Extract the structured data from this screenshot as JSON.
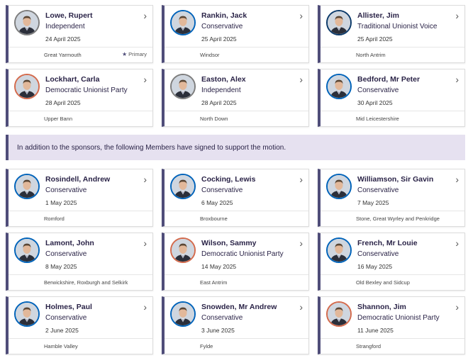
{
  "sponsors": [
    {
      "name": "Lowe, Rupert",
      "party": "Independent",
      "date": "24 April 2025",
      "constituency": "Great Yarmouth",
      "badge": "Primary"
    },
    {
      "name": "Rankin, Jack",
      "party": "Conservative",
      "date": "25 April 2025",
      "constituency": "Windsor"
    },
    {
      "name": "Allister, Jim",
      "party": "Traditional Unionist Voice",
      "date": "25 April 2025",
      "constituency": "North Antrim"
    },
    {
      "name": "Lockhart, Carla",
      "party": "Democratic Unionist Party",
      "date": "28 April 2025",
      "constituency": "Upper Bann"
    },
    {
      "name": "Easton, Alex",
      "party": "Independent",
      "date": "28 April 2025",
      "constituency": "North Down"
    },
    {
      "name": "Bedford, Mr Peter",
      "party": "Conservative",
      "date": "30 April 2025",
      "constituency": "Mid Leicestershire"
    }
  ],
  "banner_text": "In addition to the sponsors, the following Members have signed to support the motion.",
  "supporters": [
    {
      "name": "Rosindell, Andrew",
      "party": "Conservative",
      "date": "1 May 2025",
      "constituency": "Romford"
    },
    {
      "name": "Cocking, Lewis",
      "party": "Conservative",
      "date": "6 May 2025",
      "constituency": "Broxbourne"
    },
    {
      "name": "Williamson, Sir Gavin",
      "party": "Conservative",
      "date": "7 May 2025",
      "constituency": "Stone, Great Wyrley and Penkridge"
    },
    {
      "name": "Lamont, John",
      "party": "Conservative",
      "date": "8 May 2025",
      "constituency": "Berwickshire, Roxburgh and Selkirk"
    },
    {
      "name": "Wilson, Sammy",
      "party": "Democratic Unionist Party",
      "date": "14 May 2025",
      "constituency": "East Antrim"
    },
    {
      "name": "French, Mr Louie",
      "party": "Conservative",
      "date": "16 May 2025",
      "constituency": "Old Bexley and Sidcup"
    },
    {
      "name": "Holmes, Paul",
      "party": "Conservative",
      "date": "2 June 2025",
      "constituency": "Hamble Valley"
    },
    {
      "name": "Snowden, Mr Andrew",
      "party": "Conservative",
      "date": "3 June 2025",
      "constituency": "Fylde"
    },
    {
      "name": "Shannon, Jim",
      "party": "Democratic Unionist Party",
      "date": "11 June 2025",
      "constituency": "Strangford"
    }
  ],
  "party_colors": {
    "Conservative": "#0063ba",
    "Independent": "#7d7d7d",
    "Traditional Unionist Voice": "#0c3a6a",
    "Democratic Unionist Party": "#d46a4c"
  },
  "accent_color": "#4f4d79",
  "icons": {
    "chevron": "chevron-right-icon",
    "star": "star-icon"
  }
}
